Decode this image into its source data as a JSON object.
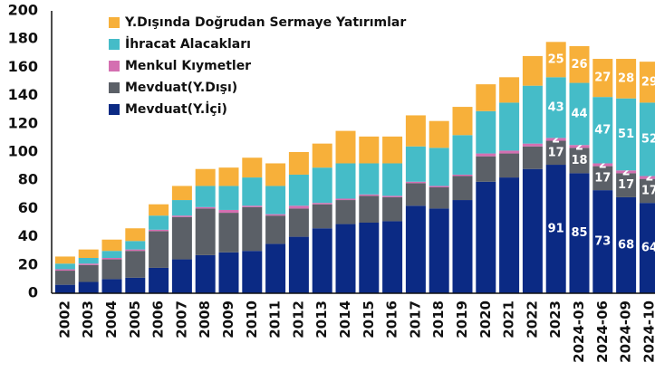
{
  "chart_data": {
    "type": "stacked_bar",
    "categories": [
      "2002",
      "2003",
      "2004",
      "2005",
      "2006",
      "2007",
      "2008",
      "2009",
      "2010",
      "2011",
      "2012",
      "2013",
      "2014",
      "2015",
      "2016",
      "2017",
      "2018",
      "2019",
      "2020",
      "2021",
      "2022",
      "2023",
      "2024-03",
      "2024-06",
      "2024-09",
      "2024-10"
    ],
    "series": [
      {
        "name": "Mevduat(Y.İçi)",
        "color": "#0b2a84",
        "values": [
          6,
          8,
          10,
          11,
          18,
          24,
          27,
          29,
          30,
          35,
          40,
          46,
          49,
          50,
          51,
          62,
          60,
          66,
          79,
          82,
          88,
          91,
          85,
          73,
          68,
          64
        ],
        "value_labels": [
          null,
          null,
          null,
          null,
          null,
          null,
          null,
          null,
          null,
          null,
          null,
          null,
          null,
          null,
          null,
          null,
          null,
          null,
          null,
          null,
          null,
          "91",
          "85",
          "73",
          "68",
          "64"
        ]
      },
      {
        "name": "Mevduat(Y.Dışı)",
        "color": "#5b6067",
        "values": [
          10,
          12,
          14,
          19,
          26,
          30,
          33,
          28,
          31,
          20,
          20,
          17,
          17,
          19,
          17,
          16,
          15,
          17,
          18,
          17,
          16,
          17,
          18,
          17,
          17,
          17
        ],
        "value_labels": [
          null,
          null,
          null,
          null,
          null,
          null,
          null,
          null,
          null,
          null,
          null,
          null,
          null,
          null,
          null,
          null,
          null,
          null,
          null,
          null,
          null,
          "17",
          "18",
          "17",
          "17",
          "17"
        ]
      },
      {
        "name": "Menkul Kıymetler",
        "color": "#d46fb1",
        "values": [
          1,
          1,
          1,
          1,
          1,
          1,
          1,
          2,
          1,
          1,
          2,
          1,
          1,
          1,
          1,
          1,
          1,
          1,
          2,
          2,
          2,
          2,
          2,
          2,
          2,
          2
        ],
        "value_labels": [
          null,
          null,
          null,
          null,
          null,
          null,
          null,
          null,
          null,
          null,
          null,
          null,
          null,
          null,
          null,
          null,
          null,
          null,
          null,
          null,
          null,
          "2",
          "2",
          "2",
          "2",
          "2"
        ]
      },
      {
        "name": "İhracat Alacakları",
        "color": "#45bcc8",
        "values": [
          4,
          4,
          5,
          6,
          10,
          11,
          15,
          17,
          20,
          20,
          22,
          25,
          25,
          22,
          23,
          25,
          27,
          28,
          30,
          34,
          41,
          43,
          44,
          47,
          51,
          52
        ],
        "value_labels": [
          null,
          null,
          null,
          null,
          null,
          null,
          null,
          null,
          null,
          null,
          null,
          null,
          null,
          null,
          null,
          null,
          null,
          null,
          null,
          null,
          null,
          "43",
          "44",
          "47",
          "51",
          "52"
        ]
      },
      {
        "name": "Y.Dışında Doğrudan Sermaye Yatırımlar",
        "color": "#f7b03a",
        "values": [
          5,
          6,
          8,
          9,
          8,
          10,
          12,
          13,
          14,
          16,
          16,
          17,
          23,
          19,
          19,
          22,
          19,
          20,
          19,
          18,
          21,
          25,
          26,
          27,
          28,
          29
        ],
        "value_labels": [
          null,
          null,
          null,
          null,
          null,
          null,
          null,
          null,
          null,
          null,
          null,
          null,
          null,
          null,
          null,
          null,
          null,
          null,
          null,
          null,
          null,
          "25",
          "26",
          "27",
          "28",
          "29"
        ]
      }
    ],
    "ylim": [
      0,
      200
    ],
    "yticks": [
      0,
      20,
      40,
      60,
      80,
      100,
      120,
      140,
      160,
      180,
      200
    ],
    "grid": false,
    "legend": "upper left"
  }
}
